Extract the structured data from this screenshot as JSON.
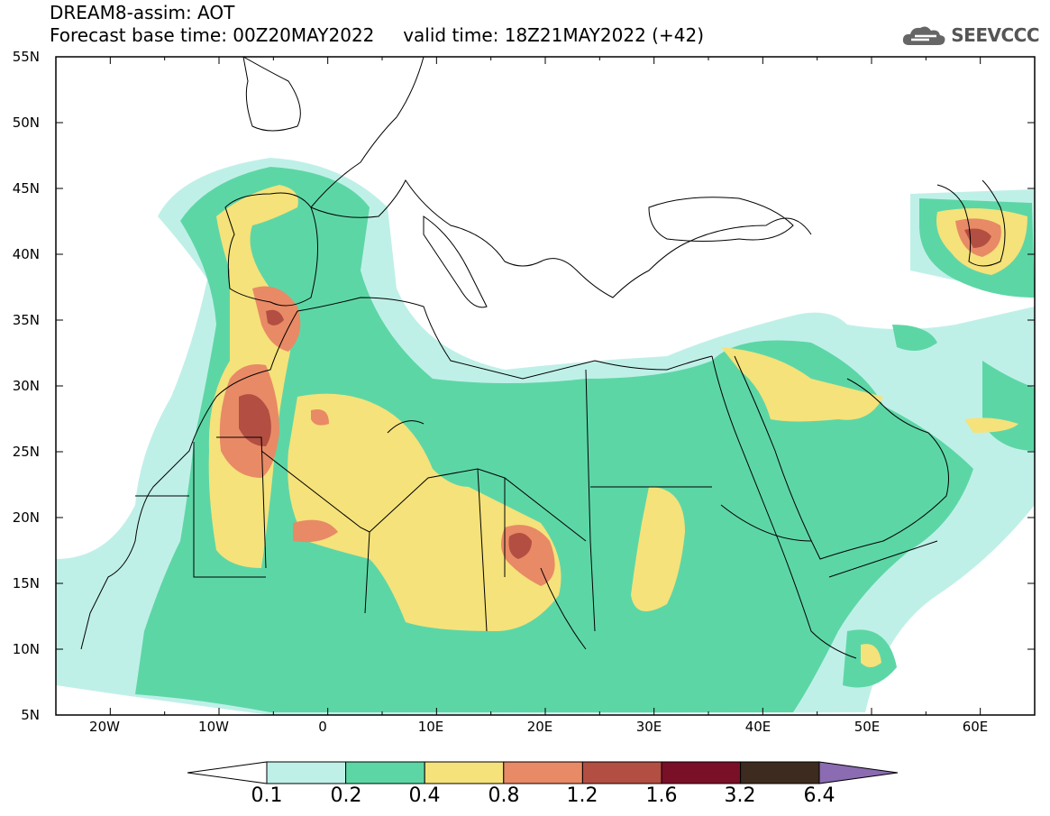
{
  "title": {
    "line1": "DREAM8-assim: AOT",
    "line2": "Forecast base time: 00Z20MAY2022     valid time: 18Z21MAY2022 (+42)"
  },
  "logo": {
    "text": "SEEVCCC",
    "icon": "cloud-icon"
  },
  "map": {
    "lon_range": [
      -25,
      65
    ],
    "lat_range": [
      5,
      55
    ],
    "lat_ticks": [
      "55N",
      "50N",
      "45N",
      "40N",
      "35N",
      "30N",
      "25N",
      "20N",
      "15N",
      "10N",
      "5N"
    ],
    "lon_ticks": [
      "20W",
      "10W",
      "0",
      "10E",
      "20E",
      "30E",
      "40E",
      "50E",
      "60E"
    ]
  },
  "colorbar": {
    "labels": [
      "0.1",
      "0.2",
      "0.4",
      "0.8",
      "1.2",
      "1.6",
      "3.2",
      "6.4"
    ],
    "colors": [
      "#bff0e8",
      "#5dd6a6",
      "#f5e27a",
      "#e88a66",
      "#b34e42",
      "#7a0f28",
      "#3d2b1f",
      "#8b6bb1"
    ]
  }
}
